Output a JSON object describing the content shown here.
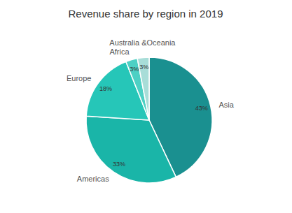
{
  "chart_data": {
    "type": "pie",
    "title": "Revenue share by region in 2019",
    "categories": [
      "Asia",
      "Americas",
      "Europe",
      "Africa",
      "Australia &Oceania"
    ],
    "values": [
      43,
      33,
      18,
      3,
      3
    ],
    "value_labels": [
      "43%",
      "33%",
      "18%",
      "3%",
      "3%"
    ],
    "colors": [
      "#1a9090",
      "#1ab5a8",
      "#26c6b8",
      "#4dd0c4",
      "#a8ddd8"
    ],
    "data_labels": true
  }
}
